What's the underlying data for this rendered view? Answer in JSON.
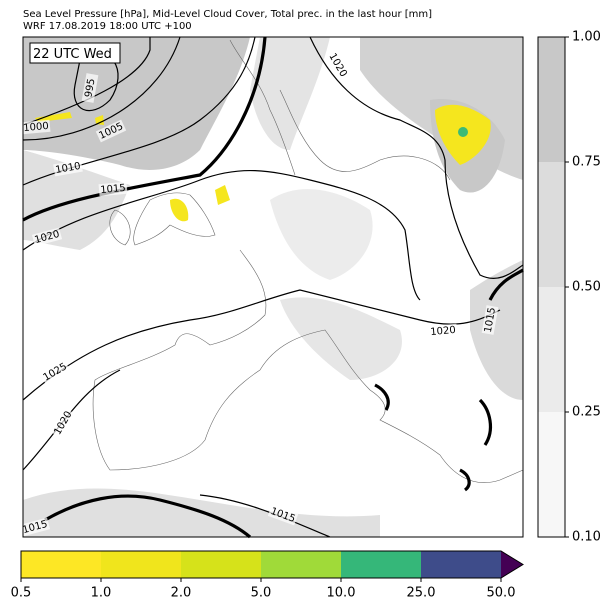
{
  "header": {
    "lines": [
      "Sea Level Pressure [hPa], Mid-Level Cloud Cover, Total prec. in the last hour [mm]",
      "WRF 17.08.2019 18:00 UTC +100"
    ]
  },
  "map": {
    "time_label": "22 UTC Wed",
    "contour_labels": [
      "995",
      "1000",
      "1005",
      "1010",
      "1015",
      "1020",
      "1020",
      "1025",
      "1020",
      "1015",
      "1015",
      "1020",
      "1015"
    ]
  },
  "cloud_colorbar": {
    "ticks": [
      {
        "value": 0.1,
        "label": "0.10"
      },
      {
        "value": 0.25,
        "label": "0.25"
      },
      {
        "value": 0.5,
        "label": "0.50"
      },
      {
        "value": 0.75,
        "label": "0.75"
      },
      {
        "value": 1,
        "label": "1.00"
      }
    ]
  },
  "precip_colorbar": {
    "ticks": [
      0.5,
      {
        "value": 1,
        "label": "1.0"
      },
      {
        "value": 2,
        "label": "2.0"
      },
      {
        "value": 5,
        "label": "5.0"
      },
      {
        "value": 10,
        "label": "10.0"
      },
      {
        "value": 25,
        "label": "25.0"
      },
      {
        "value": 50,
        "label": "50.0"
      }
    ]
  }
}
